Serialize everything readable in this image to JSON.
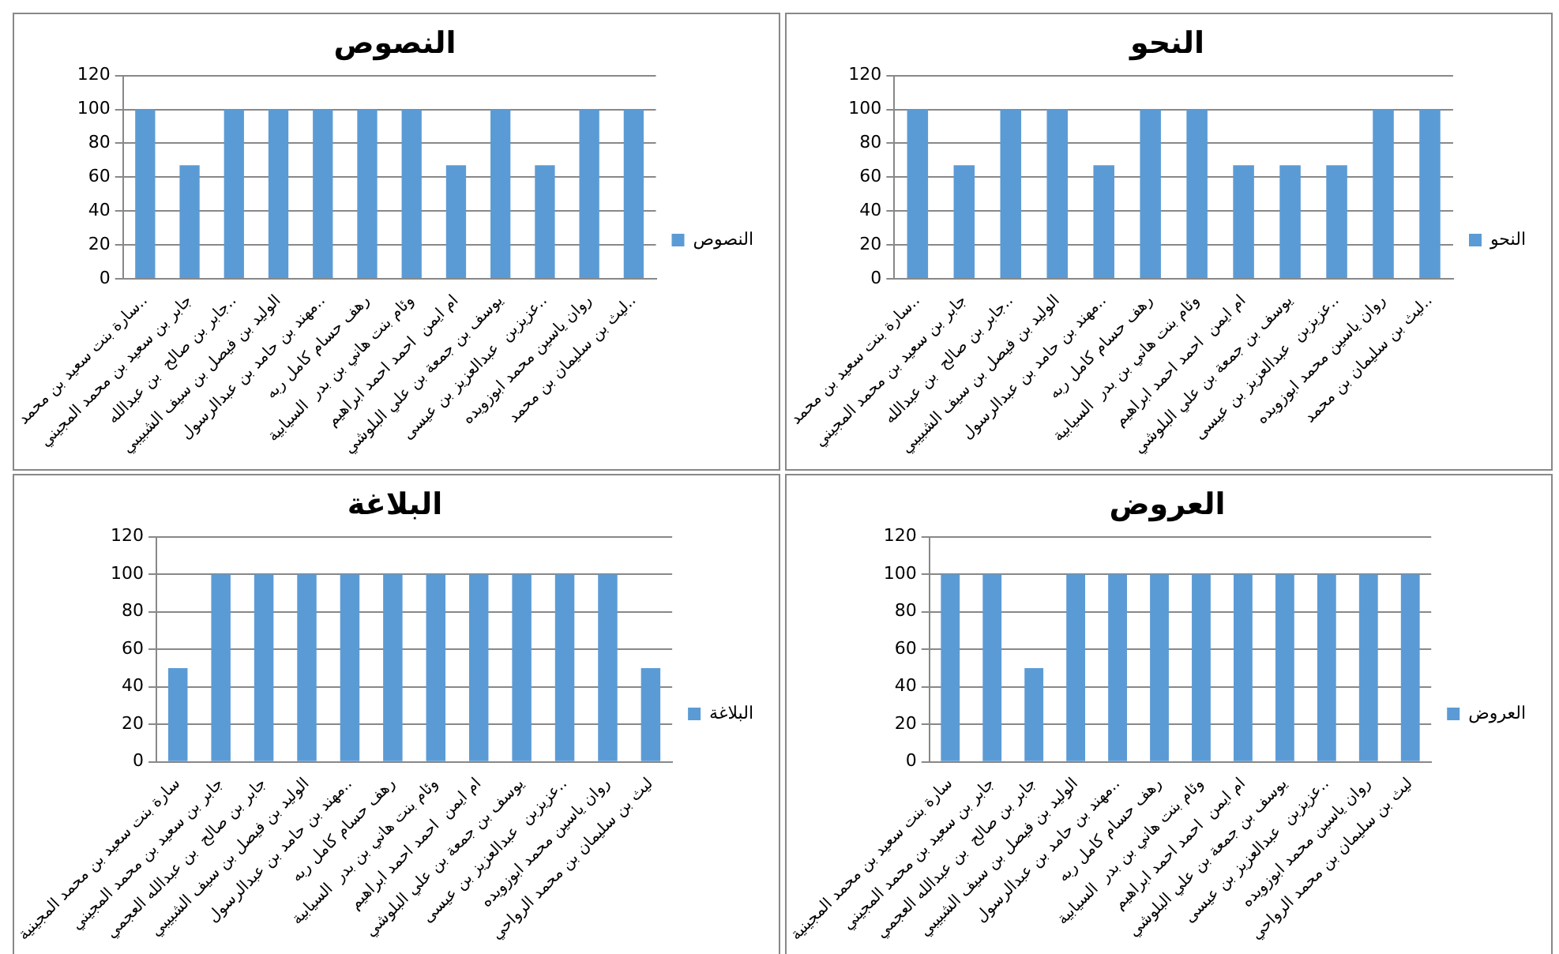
{
  "chart_data": [
    {
      "type": "bar",
      "title": "النصوص",
      "categories": [
        "سارة بنت سعيد بن محمد..",
        "جابر بن سعيد بن محمد المجيني",
        "جابر بن صالح  بن عبدالله..",
        "الوليد بن فيصل بن سيف الشبيبي",
        "مهند بن حامد بن عبدالرسول..",
        "رهف حسام كامل ربه",
        "وئام بنت هاني بن بدر  السيابية",
        "ام ايمن  احمد احمد ابراهيم",
        "يوسف بن جمعة بن علي البلوشي",
        "عزيزبن  عبدالعزيز بن عيسى..",
        "روان ياسين محمد ابوزويده",
        "ليث بن سليمان بن محمد.."
      ],
      "series": [
        {
          "name": "النصوص",
          "color": "#5b9bd5",
          "values": [
            100,
            67,
            100,
            100,
            100,
            100,
            100,
            67,
            100,
            67,
            100,
            100
          ]
        }
      ],
      "ylim": [
        0,
        120
      ],
      "yticks": [
        0,
        20,
        40,
        60,
        80,
        100,
        120
      ],
      "grid": "y",
      "legend": "right"
    },
    {
      "type": "bar",
      "title": "النحو",
      "categories": [
        "سارة بنت سعيد بن محمد..",
        "جابر بن سعيد بن محمد المجيني",
        "جابر بن صالح  بن عبدالله..",
        "الوليد بن فيصل بن سيف الشبيبي",
        "مهند بن حامد بن عبدالرسول..",
        "رهف حسام كامل ربه",
        "وئام بنت هاني بن بدر  السيابية",
        "ام ايمن  احمد احمد ابراهيم",
        "يوسف بن جمعة بن علي البلوشي",
        "عزيزبن  عبدالعزيز بن عيسى..",
        "روان ياسين محمد ابوزويده",
        "ليث بن سليمان بن محمد.."
      ],
      "series": [
        {
          "name": "النحو",
          "color": "#5b9bd5",
          "values": [
            100,
            67,
            100,
            100,
            67,
            100,
            100,
            67,
            67,
            67,
            100,
            100
          ]
        }
      ],
      "ylim": [
        0,
        120
      ],
      "yticks": [
        0,
        20,
        40,
        60,
        80,
        100,
        120
      ],
      "grid": "y",
      "legend": "right"
    },
    {
      "type": "bar",
      "title": "البلاغة",
      "categories": [
        "سارة بنت سعيد بن محمد المجينية",
        "جابر بن سعيد بن محمد المجيني",
        "جابر بن صالح  بن عبدالله العجمي",
        "الوليد بن فيصل بن سيف الشبيبي",
        "مهند بن حامد بن عبدالرسول..",
        "رهف حسام كامل ربه",
        "وئام بنت هاني بن بدر  السيابية",
        "ام ايمن  احمد احمد ابراهيم",
        "يوسف بن جمعة بن علي البلوشي",
        "عزيزبن  عبدالعزيز بن عيسى..",
        "روان ياسين محمد ابوزويده",
        "ليث بن سليمان بن محمد الرواحي"
      ],
      "series": [
        {
          "name": "البلاغة",
          "color": "#5b9bd5",
          "values": [
            50,
            100,
            100,
            100,
            100,
            100,
            100,
            100,
            100,
            100,
            100,
            50
          ]
        }
      ],
      "ylim": [
        0,
        120
      ],
      "yticks": [
        0,
        20,
        40,
        60,
        80,
        100,
        120
      ],
      "grid": "y",
      "legend": "right"
    },
    {
      "type": "bar",
      "title": "العروض",
      "categories": [
        "سارة بنت سعيد بن محمد المجينية",
        "جابر بن سعيد بن محمد المجيني",
        "جابر بن صالح  بن عبدالله العجمي",
        "الوليد بن فيصل بن سيف الشبيبي",
        "مهند بن حامد بن عبدالرسول..",
        "رهف حسام كامل ربه",
        "وئام بنت هاني بن بدر  السيابية",
        "ام ايمن  احمد احمد ابراهيم",
        "يوسف بن جمعة بن علي البلوشي",
        "عزيزبن  عبدالعزيز بن عيسى..",
        "روان ياسين محمد ابوزويده",
        "ليث بن سليمان بن محمد الرواحي"
      ],
      "series": [
        {
          "name": "العروض",
          "color": "#5b9bd5",
          "values": [
            100,
            100,
            50,
            100,
            100,
            100,
            100,
            100,
            100,
            100,
            100,
            100
          ]
        }
      ],
      "ylim": [
        0,
        120
      ],
      "yticks": [
        0,
        20,
        40,
        60,
        80,
        100,
        120
      ],
      "grid": "y",
      "legend": "right"
    }
  ]
}
